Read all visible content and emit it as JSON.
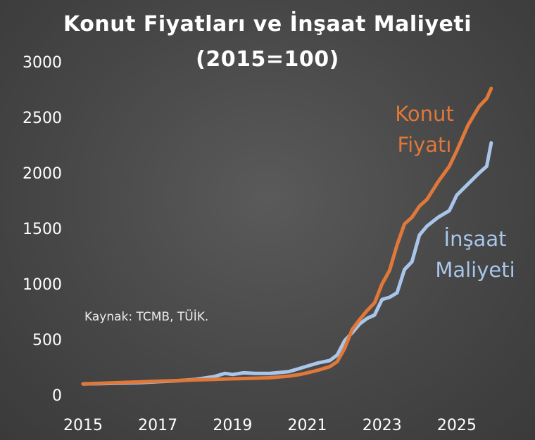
{
  "chart_data": {
    "type": "line",
    "title": "Konut Fiyatları ve İnşaat Maliyeti",
    "subtitle": "(2015=100)",
    "xlabel": "",
    "ylabel": "",
    "xlim": [
      2015,
      2026
    ],
    "ylim": [
      0,
      3000
    ],
    "yticks": [
      0,
      500,
      1000,
      1500,
      2000,
      2500,
      3000
    ],
    "xticks": [
      2015,
      2017,
      2019,
      2021,
      2023,
      2025
    ],
    "grid": false,
    "source_note": "Kaynak: TCMB, TÜİK.",
    "series": [
      {
        "name": "Konut Fiyatı",
        "label_lines": [
          "Konut",
          "Fiyatı"
        ],
        "color": "#e0783a",
        "x": [
          2015.0,
          2015.5,
          2016.0,
          2016.5,
          2017.0,
          2017.5,
          2018.0,
          2018.5,
          2019.0,
          2019.5,
          2020.0,
          2020.5,
          2020.8,
          2021.0,
          2021.3,
          2021.6,
          2021.8,
          2022.0,
          2022.2,
          2022.4,
          2022.6,
          2022.8,
          2023.0,
          2023.2,
          2023.4,
          2023.6,
          2023.8,
          2024.0,
          2024.2,
          2024.5,
          2024.8,
          2025.0,
          2025.3,
          2025.6,
          2025.8,
          2025.92
        ],
        "values": [
          100,
          106,
          112,
          118,
          124,
          130,
          136,
          141,
          146,
          150,
          156,
          170,
          185,
          200,
          225,
          255,
          300,
          420,
          590,
          680,
          760,
          830,
          1000,
          1120,
          1350,
          1540,
          1600,
          1700,
          1760,
          1920,
          2060,
          2200,
          2430,
          2600,
          2670,
          2760
        ]
      },
      {
        "name": "İnşaat Maliyeti",
        "label_lines": [
          "İnşaat",
          "Maliyeti"
        ],
        "color": "#a9c6ea",
        "x": [
          2015.0,
          2015.5,
          2016.0,
          2016.5,
          2017.0,
          2017.5,
          2018.0,
          2018.5,
          2018.8,
          2019.0,
          2019.3,
          2019.6,
          2020.0,
          2020.5,
          2020.8,
          2021.0,
          2021.3,
          2021.6,
          2021.8,
          2022.0,
          2022.2,
          2022.4,
          2022.6,
          2022.8,
          2023.0,
          2023.2,
          2023.4,
          2023.6,
          2023.8,
          2024.0,
          2024.2,
          2024.5,
          2024.8,
          2025.0,
          2025.3,
          2025.6,
          2025.8,
          2025.92
        ],
        "values": [
          100,
          103,
          107,
          111,
          120,
          128,
          140,
          165,
          195,
          185,
          200,
          195,
          195,
          210,
          240,
          260,
          290,
          310,
          360,
          490,
          560,
          640,
          690,
          720,
          860,
          880,
          920,
          1130,
          1200,
          1440,
          1520,
          1600,
          1660,
          1800,
          1900,
          2000,
          2060,
          2270
        ]
      }
    ]
  }
}
